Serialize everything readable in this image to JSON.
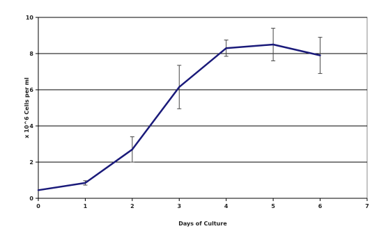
{
  "chart_data": {
    "type": "line",
    "title": "",
    "xlabel": "Days of Culture",
    "ylabel": "x 10^6 Cells per ml",
    "xlim": [
      0,
      7
    ],
    "ylim": [
      0,
      10
    ],
    "x_ticks": [
      0,
      1,
      2,
      3,
      4,
      5,
      6,
      7
    ],
    "y_ticks": [
      0,
      2,
      4,
      6,
      8,
      10
    ],
    "grid": true,
    "legend": "none",
    "series": [
      {
        "x": [
          0,
          1,
          2,
          3,
          4,
          5,
          6
        ],
        "values": [
          0.45,
          0.85,
          2.7,
          6.15,
          8.3,
          8.5,
          7.9
        ],
        "error": [
          0,
          0.12,
          0.7,
          1.2,
          0.45,
          0.9,
          1.0
        ]
      }
    ],
    "colors": {
      "line": "#1a1a7a",
      "error_bar": "#444444",
      "grid": "#000000",
      "plot_border": "#888888"
    }
  }
}
